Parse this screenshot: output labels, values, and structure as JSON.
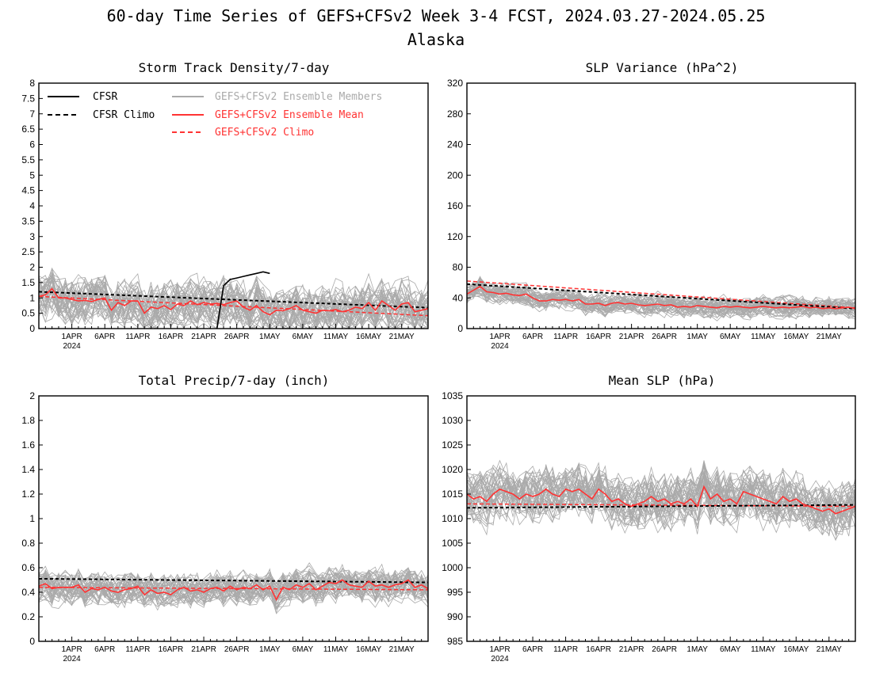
{
  "page": {
    "title": "60-day Time Series of GEFS+CFSv2 Week 3-4 FCST, 2024.03.27-2024.05.25",
    "subtitle": "Alaska"
  },
  "colors": {
    "cfsr": "#000000",
    "members": "#aaaaaa",
    "ens_mean": "#ff3333",
    "gefs_climo": "#ff3333"
  },
  "legend": {
    "cfsr": "CFSR",
    "cfsr_climo": "CFSR Climo",
    "members": "GEFS+CFSv2 Ensemble Members",
    "ens_mean": "GEFS+CFSv2 Ensemble Mean",
    "gefs_climo": "GEFS+CFSv2 Climo"
  },
  "x_ticks": [
    "1APR",
    "6APR",
    "11APR",
    "16APR",
    "21APR",
    "26APR",
    "1MAY",
    "6MAY",
    "11MAY",
    "16MAY",
    "21MAY"
  ],
  "x_year": "2024",
  "chart_data": [
    {
      "id": "storm",
      "type": "line",
      "title": "Storm Track Density/7-day",
      "ylim": [
        0,
        8
      ],
      "yticks": [
        "0",
        "0.5",
        "1",
        "1.5",
        "2",
        "2.5",
        "3",
        "3.5",
        "4",
        "4.5",
        "5",
        "5.5",
        "6",
        "6.5",
        "7",
        "7.5",
        "8"
      ],
      "x_days": 60,
      "cfsr": {
        "x": [
          27,
          28,
          29,
          30,
          31,
          32,
          33,
          34,
          35
        ],
        "values": [
          0,
          1.4,
          1.6,
          1.65,
          1.7,
          1.75,
          1.8,
          1.85,
          1.8
        ]
      },
      "cfsr_climo": {
        "start": 1.2,
        "end": 0.68
      },
      "gefs_climo": {
        "start": 1.05,
        "end": 0.42
      },
      "ens_mean": [
        1.05,
        1.1,
        1.3,
        1.0,
        1.0,
        0.95,
        0.9,
        0.92,
        0.88,
        0.95,
        1.0,
        0.6,
        0.85,
        0.75,
        0.9,
        0.9,
        0.5,
        0.7,
        0.65,
        0.75,
        0.62,
        0.8,
        0.75,
        0.9,
        0.78,
        0.85,
        0.8,
        0.82,
        0.78,
        0.85,
        0.9,
        0.7,
        0.6,
        0.75,
        0.55,
        0.45,
        0.6,
        0.58,
        0.65,
        0.75,
        0.6,
        0.55,
        0.5,
        0.6,
        0.58,
        0.62,
        0.55,
        0.6,
        0.7,
        0.65,
        0.85,
        0.6,
        0.9,
        0.75,
        0.6,
        0.8,
        0.85,
        0.55,
        0.6,
        0.65
      ],
      "member_spread": 0.6,
      "member_base": 0.95,
      "member_min": 0,
      "member_max": 3.8
    },
    {
      "id": "slpvar",
      "type": "line",
      "title": "SLP Variance (hPa^2)",
      "ylim": [
        0,
        320
      ],
      "yticks": [
        "0",
        "40",
        "80",
        "120",
        "160",
        "200",
        "240",
        "280",
        "320"
      ],
      "x_days": 60,
      "cfsr_climo": {
        "start": 58,
        "end": 26
      },
      "gefs_climo": {
        "start": 62,
        "end": 27
      },
      "ens_mean": [
        45,
        50,
        55,
        48,
        47,
        45,
        46,
        44,
        43,
        45,
        40,
        36,
        36,
        38,
        37,
        38,
        36,
        38,
        32,
        32,
        33,
        30,
        33,
        34,
        32,
        33,
        31,
        30,
        31,
        32,
        30,
        31,
        28,
        29,
        28,
        30,
        29,
        28,
        27,
        29,
        28,
        29,
        28,
        27,
        28,
        29,
        28,
        27,
        28,
        27,
        28,
        29,
        27,
        28,
        26,
        27,
        26,
        27,
        28,
        26
      ],
      "member_spread": 10,
      "member_base": 40,
      "member_min": 10,
      "member_max": 160
    },
    {
      "id": "precip",
      "type": "line",
      "title": "Total Precip/7-day (inch)",
      "ylim": [
        0,
        2
      ],
      "yticks": [
        "0",
        "0.2",
        "0.4",
        "0.6",
        "0.8",
        "1",
        "1.2",
        "1.4",
        "1.6",
        "1.8",
        "2"
      ],
      "x_days": 60,
      "cfsr_climo": {
        "start": 0.51,
        "end": 0.48
      },
      "gefs_climo": {
        "start": 0.44,
        "end": 0.42
      },
      "ens_mean": [
        0.45,
        0.47,
        0.43,
        0.44,
        0.44,
        0.44,
        0.46,
        0.4,
        0.43,
        0.42,
        0.44,
        0.41,
        0.4,
        0.42,
        0.43,
        0.45,
        0.38,
        0.42,
        0.39,
        0.4,
        0.38,
        0.42,
        0.44,
        0.41,
        0.42,
        0.4,
        0.43,
        0.44,
        0.41,
        0.45,
        0.42,
        0.44,
        0.43,
        0.46,
        0.42,
        0.45,
        0.34,
        0.44,
        0.42,
        0.46,
        0.44,
        0.47,
        0.42,
        0.45,
        0.48,
        0.47,
        0.5,
        0.46,
        0.45,
        0.44,
        0.49,
        0.45,
        0.46,
        0.44,
        0.46,
        0.47,
        0.5,
        0.44,
        0.46,
        0.43
      ],
      "member_spread": 0.1,
      "member_base": 0.44,
      "member_min": 0.05,
      "member_max": 1.02
    },
    {
      "id": "slp",
      "type": "line",
      "title": "Mean SLP (hPa)",
      "ylim": [
        985,
        1035
      ],
      "yticks": [
        "985",
        "990",
        "995",
        "1000",
        "1005",
        "1010",
        "1015",
        "1020",
        "1025",
        "1030",
        "1035"
      ],
      "x_days": 60,
      "cfsr_climo": {
        "start": 1012.2,
        "end": 1012.8
      },
      "gefs_climo": {
        "start": 1013.0,
        "end": 1012.5
      },
      "ens_mean": [
        1015,
        1014,
        1014.5,
        1013.5,
        1015,
        1016,
        1015.5,
        1015,
        1014,
        1015,
        1014.5,
        1015,
        1016,
        1015,
        1014.5,
        1016,
        1015.5,
        1016,
        1015,
        1014,
        1016,
        1015,
        1013.5,
        1014,
        1013,
        1012.5,
        1013,
        1013.5,
        1014.5,
        1013.5,
        1014,
        1013,
        1013.5,
        1013,
        1014,
        1012.5,
        1016.5,
        1014,
        1015,
        1013.5,
        1014,
        1013,
        1015.5,
        1015,
        1014.5,
        1014,
        1013.5,
        1013,
        1014.5,
        1013.5,
        1014,
        1013,
        1012.5,
        1012,
        1011.5,
        1012,
        1011,
        1011.5,
        1012,
        1012.5
      ],
      "member_spread": 4,
      "member_base": 1014,
      "member_min": 1002,
      "member_max": 1026
    }
  ]
}
